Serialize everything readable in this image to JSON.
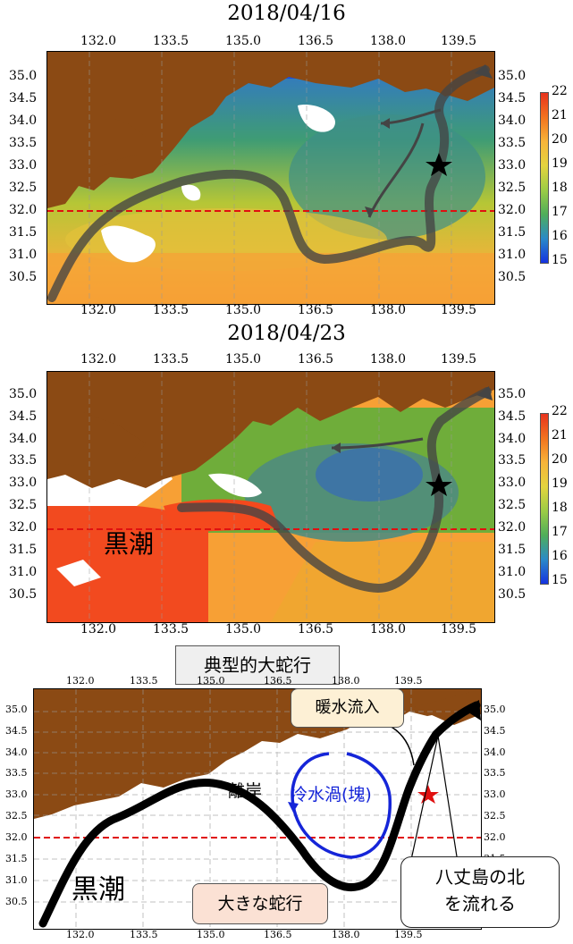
{
  "panel1": {
    "title": "2018/04/16",
    "lon_ticks": [
      "132.0",
      "133.5",
      "135.0",
      "136.5",
      "138.0",
      "139.5"
    ],
    "lat_ticks": [
      "35.0",
      "34.5",
      "34.0",
      "33.5",
      "33.0",
      "32.5",
      "32.0",
      "31.5",
      "31.0",
      "30.5"
    ],
    "colorbar_ticks": [
      "22",
      "21",
      "20",
      "19",
      "18",
      "17",
      "16",
      "15"
    ]
  },
  "panel2": {
    "title": "2018/04/23",
    "lon_ticks": [
      "132.0",
      "133.5",
      "135.0",
      "136.5",
      "138.0",
      "139.5"
    ],
    "lat_ticks": [
      "35.0",
      "34.5",
      "34.0",
      "33.5",
      "33.0",
      "32.5",
      "32.0",
      "31.5",
      "31.0",
      "30.5"
    ],
    "colorbar_ticks": [
      "22",
      "21",
      "20",
      "19",
      "18",
      "17",
      "16",
      "15"
    ],
    "kuroshio_label": "黒潮"
  },
  "panel3": {
    "header": "典型的大蛇行",
    "lon_ticks": [
      "132.0",
      "133.5",
      "135.0",
      "136.5",
      "138.0",
      "139.5"
    ],
    "lat_ticks": [
      "35.0",
      "34.5",
      "34.0",
      "33.5",
      "33.0",
      "32.5",
      "32.0",
      "31.5",
      "31.0",
      "30.5"
    ],
    "kuroshio_label": "黒潮",
    "offshore_label": "離岸",
    "cold_eddy_label": "冷水渦(塊)",
    "warm_inflow_label": "暖水流入",
    "meander_label": "大きな蛇行",
    "north_hachijo_line1": "八丈島の北",
    "north_hachijo_line2": "を流れる"
  },
  "colors": {
    "land": "#8b4a14",
    "cold": "#1d50e6",
    "warm": "#ff5a1e",
    "reference_line": "#e01010",
    "current_path": "#444444",
    "eddy": "#1525d8"
  }
}
